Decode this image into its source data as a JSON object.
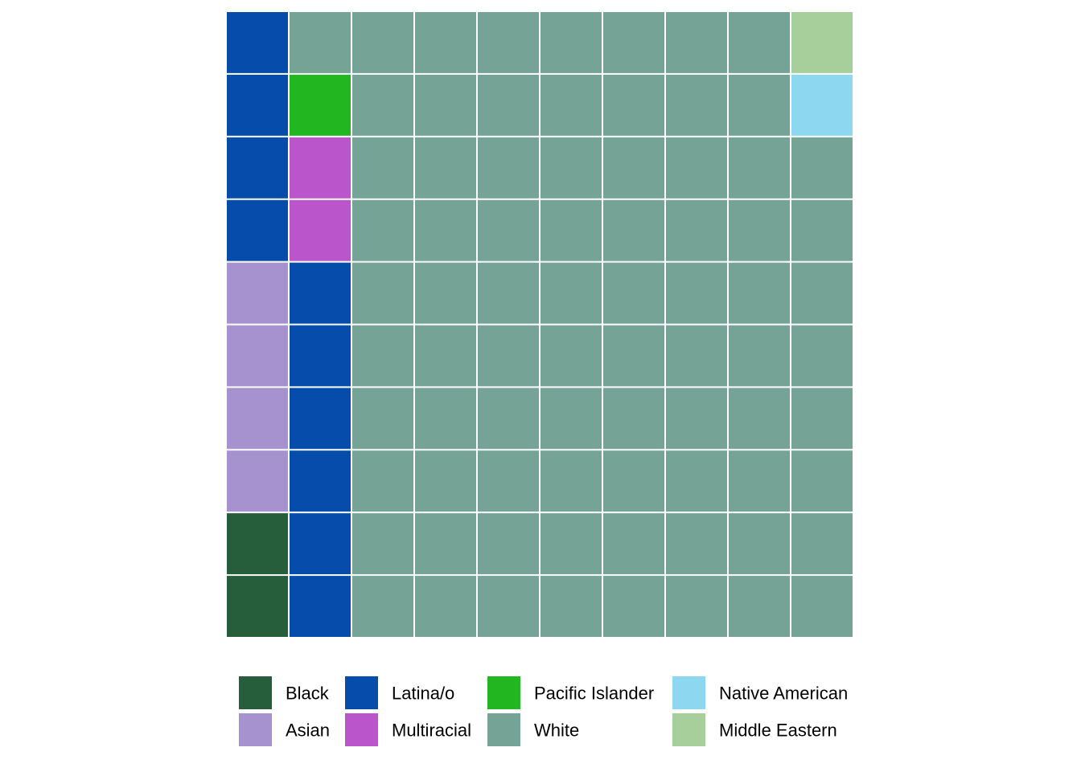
{
  "chart_data": {
    "type": "waffle",
    "grid": {
      "rows": 10,
      "cols": 10
    },
    "fill_order": "column-major from bottom-left",
    "series": [
      {
        "name": "Black",
        "count": 2,
        "color": "#265e3b"
      },
      {
        "name": "Asian",
        "count": 4,
        "color": "#a592cf"
      },
      {
        "name": "Latina/o",
        "count": 10,
        "color": "#054cab"
      },
      {
        "name": "Multiracial",
        "count": 2,
        "color": "#ba55cb"
      },
      {
        "name": "Pacific Islander",
        "count": 1,
        "color": "#22b720"
      },
      {
        "name": "White",
        "count": 79,
        "color": "#75a496"
      },
      {
        "name": "Native American",
        "count": 1,
        "color": "#8dd7f0"
      },
      {
        "name": "Middle Eastern",
        "count": 1,
        "color": "#a6cf9c"
      }
    ],
    "legend": {
      "position": "bottom",
      "layout": "2 rows, column-major",
      "order": [
        "Black",
        "Asian",
        "Latina/o",
        "Multiracial",
        "Pacific Islander",
        "White",
        "Native American",
        "Middle Eastern"
      ]
    },
    "title": "",
    "xlabel": "",
    "ylabel": ""
  }
}
